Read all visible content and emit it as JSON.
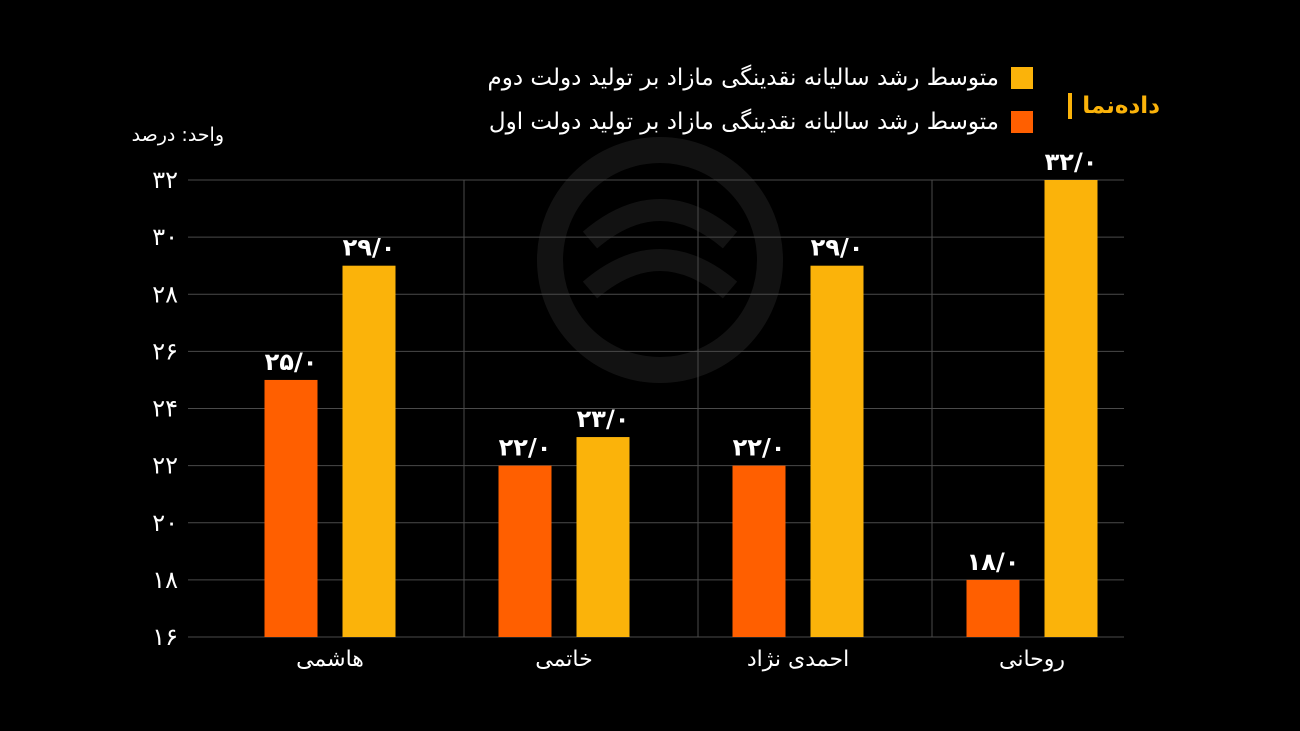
{
  "brand": {
    "name": "داده‌نما"
  },
  "unit_label": "واحد: درصد",
  "colors": {
    "background": "#000000",
    "second_term": "#fbb30a",
    "first_term": "#ff5f00",
    "grid": "#4a4a4a",
    "text": "#ffffff"
  },
  "watermark_icon": "logo-swirl-icon",
  "chart_data": {
    "type": "bar",
    "categories": [
      "هاشمی",
      "خاتمی",
      "احمدی نژاد",
      "روحانی"
    ],
    "series": [
      {
        "name": "متوسط رشد سالیانه نقدینگی مازاد بر تولید دولت اول",
        "color": "#ff5f00",
        "values": [
          25.0,
          22.0,
          22.0,
          18.0
        ],
        "labels": [
          "۲۵/۰",
          "۲۲/۰",
          "۲۲/۰",
          "۱۸/۰"
        ]
      },
      {
        "name": "متوسط رشد سالیانه نقدینگی مازاد بر تولید دولت دوم",
        "color": "#fbb30a",
        "values": [
          29.0,
          23.0,
          29.0,
          32.0
        ],
        "labels": [
          "۲۹/۰",
          "۲۳/۰",
          "۲۹/۰",
          "۳۲/۰"
        ]
      }
    ],
    "legend_order": [
      1,
      0
    ],
    "yticks": [
      16,
      18,
      20,
      22,
      24,
      26,
      28,
      30,
      32
    ],
    "ytick_labels": [
      "۱۶",
      "۱۸",
      "۲۰",
      "۲۲",
      "۲۴",
      "۲۶",
      "۲۸",
      "۳۰",
      "۳۲"
    ],
    "ylim": [
      16,
      32
    ],
    "grid": true,
    "legend_position": "top-right"
  }
}
